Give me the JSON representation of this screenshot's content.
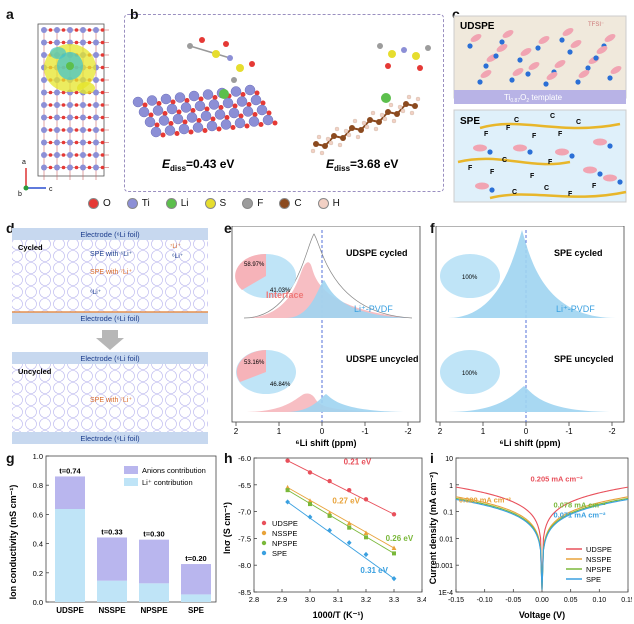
{
  "panel_labels": {
    "a": "a",
    "b": "b",
    "c": "c",
    "d": "d",
    "e": "e",
    "f": "f",
    "g": "g",
    "h": "h",
    "i": "i"
  },
  "panel_a": {
    "axis_a": "a",
    "axis_b": "b",
    "axis_c": "c"
  },
  "panel_b": {
    "energy_left_prefix": "E",
    "energy_left_sub": "diss",
    "energy_left_value": "=0.43 eV",
    "energy_right_prefix": "E",
    "energy_right_sub": "diss",
    "energy_right_value": "=3.68 eV"
  },
  "legend_atoms": [
    {
      "symbol": "O",
      "color": "#e53935"
    },
    {
      "symbol": "Ti",
      "color": "#8c8fd6"
    },
    {
      "symbol": "Li",
      "color": "#5cbf4c"
    },
    {
      "symbol": "S",
      "color": "#e6dd2e"
    },
    {
      "symbol": "F",
      "color": "#9c9c9c"
    },
    {
      "symbol": "C",
      "color": "#8b4a1f"
    },
    {
      "symbol": "H",
      "color": "#f2d0c4"
    }
  ],
  "panel_c": {
    "top_title": "UDSPE",
    "tfsi": "TFSI⁻",
    "template_main": "Ti",
    "template_sub": "0.87",
    "template_rest": "O",
    "template_sub2": "2",
    "template_suffix": " template",
    "bottom_title": "SPE",
    "atoms": [
      "F",
      "F",
      "C",
      "F",
      "F",
      "C",
      "C",
      "F",
      "F",
      "C",
      "F",
      "F",
      "C",
      "C",
      "F",
      "F"
    ]
  },
  "panel_d": {
    "electrode_label": "Electrode (⁶Li foil)",
    "cycled": "Cycled",
    "spe_with_mixed": "SPE with ⁶Li⁺",
    "spe_with_7": "SPE with ⁷Li⁺",
    "li7_tag": "⁷Li⁺",
    "li6_tag": "⁶Li⁺",
    "uncycled": "Uncycled"
  },
  "panel_e": {
    "top_label": "UDSPE cycled",
    "bottom_label": "UDSPE uncycled",
    "top_pie": [
      "58.97%",
      "41.03%"
    ],
    "bottom_pie": [
      "53.16%",
      "46.84%"
    ],
    "interface": "Interface",
    "li_pvdf": "Li⁺-PVDF",
    "xlabel": "⁶Li shift (ppm)",
    "xticks": [
      "2",
      "1",
      "0",
      "-1",
      "-2"
    ]
  },
  "panel_f": {
    "top_label": "SPE cycled",
    "bottom_label": "SPE uncycled",
    "top_pie": "100%",
    "bottom_pie": "100%",
    "li_pvdf": "Li⁺-PVDF",
    "xlabel": "⁶Li shift (ppm)",
    "xticks": [
      "2",
      "1",
      "0",
      "-1",
      "-2"
    ]
  },
  "chart_data": [
    {
      "id": "g",
      "type": "bar",
      "stacked": true,
      "categories": [
        "UDSPE",
        "NSSPE",
        "NPSPE",
        "SPE"
      ],
      "series": [
        {
          "name": "Li⁺ contribution",
          "color": "#bfe4f7",
          "values": [
            0.637,
            0.146,
            0.128,
            0.052
          ]
        },
        {
          "name": "Anions contribution",
          "color": "#b9b6ee",
          "values": [
            0.223,
            0.296,
            0.299,
            0.208
          ]
        }
      ],
      "annotations": [
        "t=0.74",
        "t=0.33",
        "t=0.30",
        "t=0.20"
      ],
      "ylabel": "Ion conductivity (mS cm⁻¹)",
      "ylim": [
        0,
        1.0
      ],
      "yticks": [
        "0.0",
        "0.2",
        "0.4",
        "0.6",
        "0.8",
        "1.0"
      ],
      "legend": [
        "Anions contribution",
        "Li⁺ contribution"
      ]
    },
    {
      "id": "h",
      "type": "scatter",
      "xlabel": "1000/T (K⁻¹)",
      "ylabel": "lnσ (S cm⁻¹)",
      "xlim": [
        2.8,
        3.4
      ],
      "ylim": [
        -8.5,
        -6.0
      ],
      "xticks": [
        "2.8",
        "2.9",
        "3.0",
        "3.1",
        "3.2",
        "3.3",
        "3.4"
      ],
      "yticks": [
        "-6.0",
        "-6.5",
        "-7.0",
        "-7.5",
        "-8.0",
        "-8.5"
      ],
      "x": [
        2.92,
        3.0,
        3.07,
        3.14,
        3.2,
        3.3
      ],
      "series": [
        {
          "name": "UDSPE",
          "color": "#e8505b",
          "marker": "circle",
          "values": [
            -6.05,
            -6.27,
            -6.43,
            -6.6,
            -6.77,
            -7.05
          ],
          "label": "0.21 eV"
        },
        {
          "name": "NSSPE",
          "color": "#e8a33a",
          "marker": "triangle",
          "values": [
            -6.55,
            -6.8,
            -7.03,
            -7.22,
            -7.4,
            -7.68
          ],
          "label": "0.27 eV"
        },
        {
          "name": "NPSPE",
          "color": "#7ab83a",
          "marker": "square",
          "values": [
            -6.6,
            -6.86,
            -7.08,
            -7.3,
            -7.48,
            -7.78
          ],
          "label": "0.26 eV"
        },
        {
          "name": "SPE",
          "color": "#3aa0e0",
          "marker": "diamond",
          "values": [
            -6.82,
            -7.1,
            -7.35,
            -7.58,
            -7.8,
            -8.25
          ],
          "label": "0.31 eV"
        }
      ]
    },
    {
      "id": "i",
      "type": "line",
      "yscale": "log",
      "xlabel": "Voltage (V)",
      "ylabel": "Current density (mA cm⁻²)",
      "xlim": [
        -0.15,
        0.15
      ],
      "ylim": [
        0.0001,
        10
      ],
      "xticks": [
        "-0.15",
        "-0.10",
        "-0.05",
        "0.00",
        "0.05",
        "0.10",
        "0.15"
      ],
      "yticks": [
        "10",
        "1",
        "0.1",
        "0.01",
        "0.001",
        "1E-4"
      ],
      "series": [
        {
          "name": "UDSPE",
          "color": "#e8505b",
          "slope": 0.205
        },
        {
          "name": "NSSPE",
          "color": "#e8a33a",
          "slope": 0.089
        },
        {
          "name": "NPSPE",
          "color": "#7ab83a",
          "slope": 0.078
        },
        {
          "name": "SPE",
          "color": "#3aa0e0",
          "slope": 0.071
        }
      ],
      "annotations": [
        "0.205 mA cm⁻²",
        "0.089 mA cm⁻²",
        "0.078 mA cm⁻²",
        "0.071 mA cm⁻²"
      ]
    }
  ]
}
